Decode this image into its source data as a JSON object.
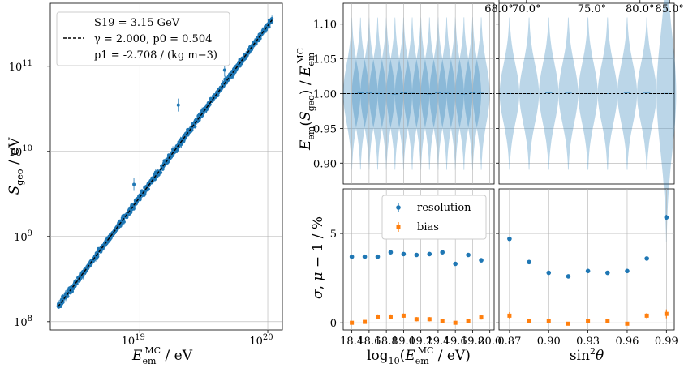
{
  "chart_data": [
    {
      "type": "scatter",
      "name": "sgeo_vs_energy",
      "xscale": "log",
      "yscale": "log",
      "xlim": [
        2e+18,
        1.3e+20
      ],
      "ylim": [
        80000000.0,
        550000000000.0
      ],
      "xlabel": "E_em^MC / eV",
      "ylabel": "S_geo / eV",
      "xticks": [
        {
          "v": 1e+19,
          "label": "10^19"
        },
        {
          "v": 1e+20,
          "label": "10^20"
        }
      ],
      "yticks": [
        {
          "v": 100000000.0,
          "label": "10^8"
        },
        {
          "v": 1000000000.0,
          "label": "10^9"
        },
        {
          "v": 10000000000.0,
          "label": "10^10"
        },
        {
          "v": 100000000000.0,
          "label": "10^11"
        }
      ],
      "fit": {
        "x": [
          2.3e+18,
          1.08e+20
        ],
        "y": [
          150000000.0,
          350000000000.0
        ]
      },
      "points_x": [
        2.5e+18,
        3e+18,
        3.6e+18,
        4.3e+18,
        5e+18,
        6e+18,
        7.2e+18,
        8.5e+18,
        1e+19,
        1.2e+19,
        1.45e+19,
        1.7e+19,
        2e+19,
        2.4e+19,
        2.9e+19,
        3.4e+19,
        4e+19,
        4.8e+19,
        5.7e+19,
        6.8e+19,
        8e+19,
        9.5e+19,
        1.05e+20
      ],
      "legend": {
        "line1": "S19 = 3.15 GeV",
        "line2": "γ = 2.000, p0 = 0.504",
        "line3": "p1 = -2.708 / (kg m−3)"
      }
    },
    {
      "type": "violin",
      "name": "energy_ratio_vs_log_energy",
      "ylim": [
        0.87,
        1.13
      ],
      "yticks": [
        0.9,
        0.95,
        1.0,
        1.05,
        1.1
      ],
      "ytick_labels": [
        "0.90",
        "0.95",
        "1.00",
        "1.05",
        "1.10"
      ],
      "xlim": [
        18.3,
        20.05
      ],
      "ylabel": "E_em(S_geo) / E_em^MC",
      "positions": [
        18.4,
        18.5,
        18.6,
        18.7,
        18.8,
        18.9,
        19.0,
        19.1,
        19.2,
        19.3,
        19.4,
        19.5,
        19.6,
        19.7,
        19.8,
        19.9
      ],
      "halfwidth_max": 0.1
    },
    {
      "type": "violin",
      "name": "energy_ratio_vs_sin2theta",
      "ylim": [
        0.87,
        1.13
      ],
      "xlim": [
        0.862,
        0.996
      ],
      "top_ticks": [
        {
          "pos": 0.8597,
          "label": "68.0°"
        },
        {
          "pos": 0.883,
          "label": "70.0°"
        },
        {
          "pos": 0.933,
          "label": "75.0°"
        },
        {
          "pos": 0.9698,
          "label": "80.0°"
        },
        {
          "pos": 0.9924,
          "label": "85.0°"
        }
      ],
      "positions": [
        0.87,
        0.885,
        0.9,
        0.915,
        0.93,
        0.945,
        0.96,
        0.975,
        0.99
      ],
      "halfwidth_max": 0.0075
    },
    {
      "type": "errorbar",
      "name": "resolution_bias_vs_log_energy",
      "ylim": [
        -0.4,
        7.5
      ],
      "yticks": [
        0,
        5
      ],
      "ytick_labels": [
        "0",
        "5"
      ],
      "xlim": [
        18.3,
        20.05
      ],
      "xticks": [
        18.4,
        18.6,
        18.8,
        19.0,
        19.2,
        19.4,
        19.6,
        19.8,
        20.0
      ],
      "xtick_labels": [
        "18.4",
        "18.6",
        "18.8",
        "19.0",
        "19.2",
        "19.4",
        "19.6",
        "19.8",
        "20.0"
      ],
      "xlabel": "log10(E_em^MC / eV)",
      "ylabel": "σ, μ − 1 / %",
      "series": [
        {
          "name": "resolution",
          "color": "#1f77b4",
          "x": [
            18.4,
            18.55,
            18.7,
            18.85,
            19.0,
            19.15,
            19.3,
            19.45,
            19.6,
            19.75,
            19.9
          ],
          "y": [
            3.7,
            3.7,
            3.7,
            3.95,
            3.85,
            3.8,
            3.85,
            3.95,
            3.3,
            3.8,
            3.5
          ],
          "err": [
            0.1,
            0.08,
            0.08,
            0.08,
            0.08,
            0.08,
            0.08,
            0.1,
            0.1,
            0.1,
            0.12
          ]
        },
        {
          "name": "bias",
          "color": "#ff7f0e",
          "x": [
            18.4,
            18.55,
            18.7,
            18.85,
            19.0,
            19.15,
            19.3,
            19.45,
            19.6,
            19.75,
            19.9
          ],
          "y": [
            0.0,
            0.05,
            0.35,
            0.35,
            0.4,
            0.2,
            0.2,
            0.1,
            0.0,
            0.1,
            0.3
          ],
          "err": [
            0.1,
            0.1,
            0.12,
            0.12,
            0.12,
            0.12,
            0.12,
            0.1,
            0.1,
            0.1,
            0.12
          ]
        }
      ]
    },
    {
      "type": "errorbar",
      "name": "resolution_bias_vs_sin2theta",
      "ylim": [
        -0.4,
        7.5
      ],
      "xlim": [
        0.862,
        0.996
      ],
      "xticks": [
        0.87,
        0.9,
        0.93,
        0.96,
        0.99
      ],
      "xtick_labels": [
        "0.87",
        "0.90",
        "0.93",
        "0.96",
        "0.99"
      ],
      "xlabel": "sin²θ",
      "series": [
        {
          "name": "resolution",
          "color": "#1f77b4",
          "x": [
            0.87,
            0.885,
            0.9,
            0.915,
            0.93,
            0.945,
            0.96,
            0.975,
            0.99
          ],
          "y": [
            4.7,
            3.4,
            2.8,
            2.6,
            2.9,
            2.8,
            2.9,
            3.6,
            5.9
          ],
          "err": [
            0.1,
            0.08,
            0.08,
            0.08,
            0.08,
            0.08,
            0.08,
            0.1,
            0.15
          ]
        },
        {
          "name": "bias",
          "color": "#ff7f0e",
          "x": [
            0.87,
            0.885,
            0.9,
            0.915,
            0.93,
            0.945,
            0.96,
            0.975,
            0.99
          ],
          "y": [
            0.4,
            0.1,
            0.1,
            -0.05,
            0.1,
            0.1,
            -0.05,
            0.4,
            0.5
          ],
          "err": [
            0.2,
            0.1,
            0.1,
            0.1,
            0.1,
            0.1,
            0.1,
            0.15,
            0.25
          ]
        }
      ]
    }
  ],
  "legend_errorbar": [
    "resolution",
    "bias"
  ]
}
